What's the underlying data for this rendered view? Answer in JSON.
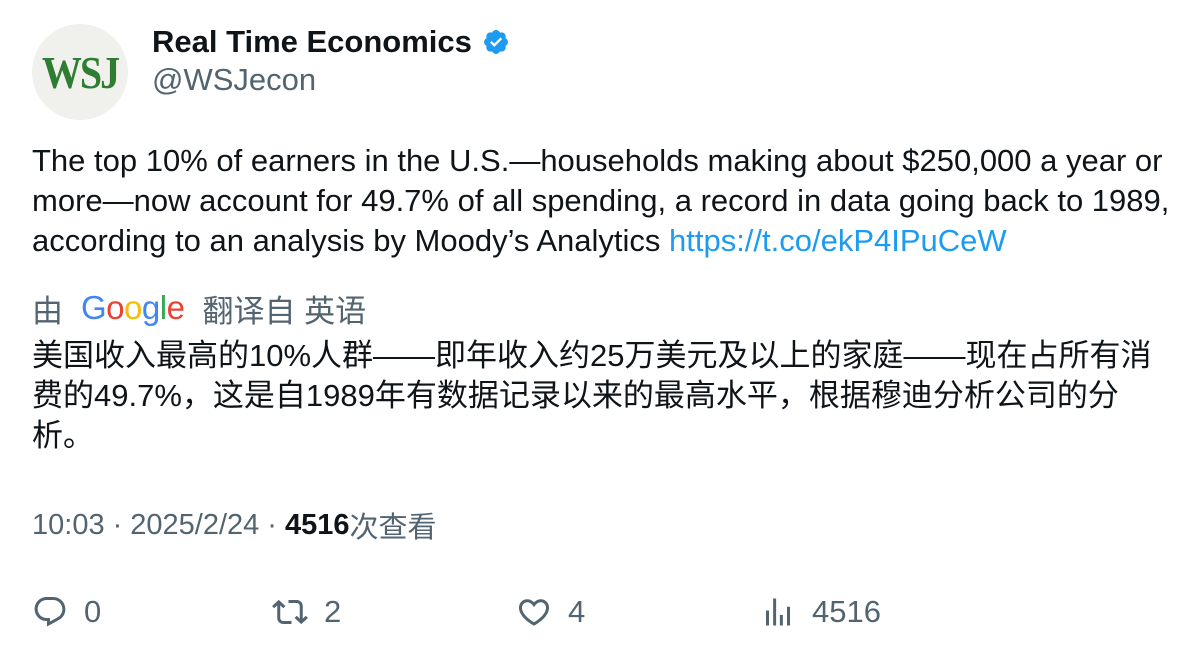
{
  "author": {
    "avatar_text": "WSJ",
    "display_name": "Real Time Economics",
    "handle": "@WSJecon"
  },
  "tweet": {
    "text": "The top 10% of earners in the U.S.—households making about $250,000 a year or more—now account for 49.7% of all spending, a record in data going back to 1989, according to an analysis by Moody’s Analytics ",
    "link": "https://t.co/ekP4IPuCeW"
  },
  "translation": {
    "prefix": "由",
    "google_letters": [
      "G",
      "o",
      "o",
      "g",
      "l",
      "e"
    ],
    "suffix": "翻译自 英语",
    "text": "美国收入最高的10%人群——即年收入约25万美元及以上的家庭——现在占所有消费的49.7%，这是自1989年有数据记录以来的最高水平，根据穆迪分析公司的分析。"
  },
  "meta": {
    "time": "10:03",
    "separator": "·",
    "date": "2025/2/24",
    "views_count": "4516",
    "views_label": "次查看"
  },
  "actions": {
    "reply_count": "0",
    "repost_count": "2",
    "like_count": "4",
    "views_count": "4516"
  },
  "colors": {
    "link": "#1d9bf0",
    "verified": "#1d9bf0",
    "secondary_text": "#536471",
    "wsj_green": "#2e7d32"
  },
  "icons": {
    "verified": "verified-badge-icon",
    "reply": "reply-icon",
    "repost": "repost-icon",
    "like": "heart-icon",
    "views": "views-chart-icon"
  }
}
